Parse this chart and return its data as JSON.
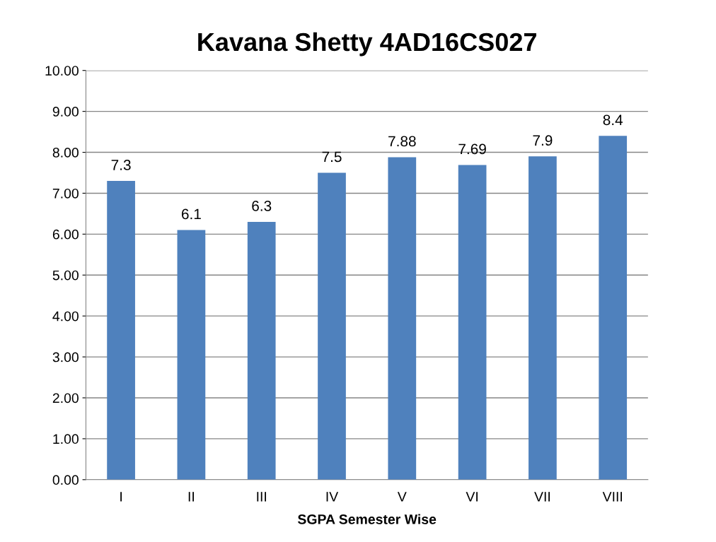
{
  "chart_data": {
    "type": "bar",
    "title": "Kavana Shetty 4AD16CS027",
    "xlabel": "SGPA Semester Wise",
    "categories": [
      "I",
      "II",
      "III",
      "IV",
      "V",
      "VI",
      "VII",
      "VIII"
    ],
    "values": [
      7.3,
      6.1,
      6.3,
      7.5,
      7.88,
      7.69,
      7.9,
      8.4
    ],
    "color": "#4f81bd",
    "data_labels": true,
    "grid": "y",
    "legend": false,
    "ylim": [
      0,
      10
    ],
    "yticks": [
      {
        "value": 0,
        "label": "0.00"
      },
      {
        "value": 1,
        "label": "1.00"
      },
      {
        "value": 2,
        "label": "2.00"
      },
      {
        "value": 3,
        "label": "3.00"
      },
      {
        "value": 4,
        "label": "4.00"
      },
      {
        "value": 5,
        "label": "5.00"
      },
      {
        "value": 6,
        "label": "6.00"
      },
      {
        "value": 7,
        "label": "7.00"
      },
      {
        "value": 8,
        "label": "8.00"
      },
      {
        "value": 9,
        "label": "9.00"
      },
      {
        "value": 10,
        "label": "10.00"
      }
    ]
  }
}
